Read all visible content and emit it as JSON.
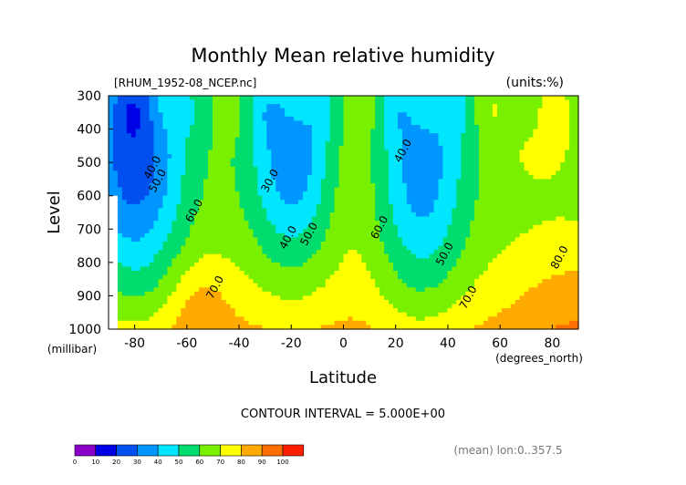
{
  "chart_data": {
    "type": "contour",
    "title": "Monthly Mean relative humidity",
    "source_label": "[RHUM_1952-08_NCEP.nc]",
    "units_label": "(units:%)",
    "xlabel": "Latitude",
    "x_unit": "(degrees_north)",
    "ylabel": "Level",
    "y_unit": "(millibar)",
    "xlim": [
      -90,
      90
    ],
    "ylim": [
      1000,
      300
    ],
    "x_ticks": [
      "-80",
      "-60",
      "-40",
      "-20",
      "0",
      "20",
      "40",
      "60",
      "80"
    ],
    "x_tick_values": [
      -80,
      -60,
      -40,
      -20,
      0,
      20,
      40,
      60,
      80
    ],
    "y_ticks": [
      "300",
      "400",
      "500",
      "600",
      "700",
      "800",
      "900",
      "1000"
    ],
    "y_tick_values": [
      300,
      400,
      500,
      600,
      700,
      800,
      900,
      1000
    ],
    "contour_interval_text": "CONTOUR INTERVAL = 5.000E+00",
    "mean_note": "(mean) lon:0..357.5",
    "contour_labels": [
      {
        "text": "40.0",
        "lat": -72,
        "lev": 520
      },
      {
        "text": "50.0",
        "lat": -70,
        "lev": 560
      },
      {
        "text": "60.0",
        "lat": -56,
        "lev": 650
      },
      {
        "text": "70.0",
        "lat": -48,
        "lev": 880
      },
      {
        "text": "30.0",
        "lat": -27,
        "lev": 560
      },
      {
        "text": "40.0",
        "lat": -20,
        "lev": 730
      },
      {
        "text": "50.0",
        "lat": -12,
        "lev": 720
      },
      {
        "text": "60.0",
        "lat": 15,
        "lev": 700
      },
      {
        "text": "40.0",
        "lat": 24,
        "lev": 470
      },
      {
        "text": "50.0",
        "lat": 40,
        "lev": 780
      },
      {
        "text": "70.0",
        "lat": 49,
        "lev": 910
      },
      {
        "text": "80.0",
        "lat": 84,
        "lev": 790
      }
    ],
    "levels": [
      0,
      10,
      20,
      30,
      40,
      50,
      60,
      70,
      80,
      90,
      100
    ],
    "colorbar_labels": [
      "0",
      "10",
      "20",
      "30",
      "40",
      "50",
      "60",
      "70",
      "80",
      "90",
      "100"
    ],
    "colorbar_colors": [
      "#8a00c8",
      "#0000e6",
      "#0050f0",
      "#0096ff",
      "#00e6ff",
      "#00dc6e",
      "#78f000",
      "#ffff00",
      "#ffaa00",
      "#ff6e00",
      "#ff1e00"
    ],
    "missing_color": "#ffffff"
  }
}
